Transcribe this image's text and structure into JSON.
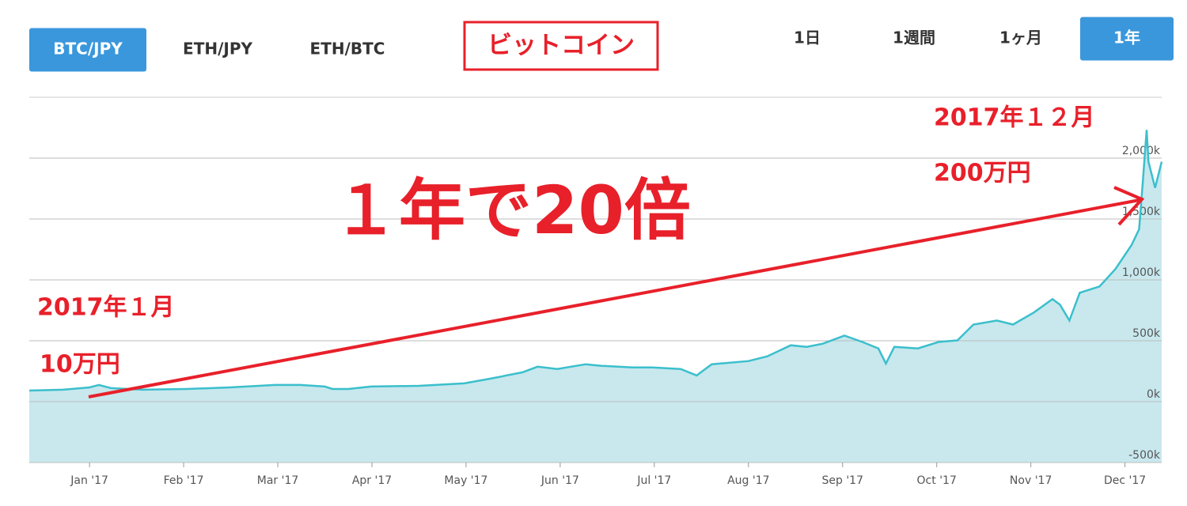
{
  "ui": {
    "pairs": [
      {
        "label": "BTC/JPY",
        "active": true
      },
      {
        "label": "ETH/JPY",
        "active": false
      },
      {
        "label": "ETH/BTC",
        "active": false
      }
    ],
    "title": "ビットコイン",
    "periods": [
      {
        "label": "1日",
        "active": false
      },
      {
        "label": "1週間",
        "active": false
      },
      {
        "label": "1ヶ月",
        "active": false
      },
      {
        "label": "1年",
        "active": true
      }
    ]
  },
  "chart_data": {
    "type": "area",
    "color": "#3bbfcc",
    "fill_color": "#c8e8ee",
    "grid": true,
    "x": [
      -0.64,
      -0.28,
      0,
      0.1,
      0.23,
      0.56,
      1.03,
      1.49,
      1.97,
      2.24,
      2.5,
      2.58,
      2.75,
      2.99,
      3.5,
      3.98,
      4.26,
      4.6,
      4.76,
      4.97,
      5.27,
      5.44,
      5.77,
      5.98,
      6.28,
      6.45,
      6.61,
      7.0,
      7.2,
      7.45,
      7.62,
      7.79,
      8.02,
      8.21,
      8.38,
      8.46,
      8.55,
      8.8,
      9.02,
      9.22,
      9.39,
      9.64,
      9.81,
      10.03,
      10.23,
      10.31,
      10.41,
      10.52,
      10.73,
      10.9,
      11.07,
      11.15,
      11.19,
      11.23,
      11.25,
      11.32,
      11.39
    ],
    "values": [
      91000,
      98000,
      117000,
      137000,
      111000,
      98000,
      104000,
      117000,
      137000,
      137000,
      124000,
      104000,
      104000,
      124000,
      130000,
      150000,
      189000,
      241000,
      287000,
      268000,
      307000,
      294000,
      281000,
      281000,
      268000,
      215000,
      307000,
      333000,
      372000,
      463000,
      450000,
      476000,
      542000,
      490000,
      437000,
      313000,
      450000,
      437000,
      490000,
      503000,
      633000,
      666000,
      633000,
      731000,
      842000,
      796000,
      666000,
      894000,
      946000,
      1090000,
      1286000,
      1416000,
      1808000,
      2232000,
      1971000,
      1756000,
      1971000
    ],
    "xlim": [
      -0.64,
      11.39
    ],
    "xticks": [
      {
        "value": 0,
        "label": "Jan '17"
      },
      {
        "value": 1,
        "label": "Feb '17"
      },
      {
        "value": 2,
        "label": "Mar '17"
      },
      {
        "value": 3,
        "label": "Apr '17"
      },
      {
        "value": 4,
        "label": "May '17"
      },
      {
        "value": 5,
        "label": "Jun '17"
      },
      {
        "value": 6,
        "label": "Jul '17"
      },
      {
        "value": 7,
        "label": "Aug '17"
      },
      {
        "value": 8,
        "label": "Sep '17"
      },
      {
        "value": 9,
        "label": "Oct '17"
      },
      {
        "value": 10,
        "label": "Nov '17"
      },
      {
        "value": 11,
        "label": "Dec '17"
      }
    ],
    "ylim": [
      -500000,
      2500000
    ],
    "yticks": [
      {
        "value": -500000,
        "label": "-500k"
      },
      {
        "value": 0,
        "label": "0k"
      },
      {
        "value": 500000,
        "label": "500k"
      },
      {
        "value": 1000000,
        "label": "1,000k"
      },
      {
        "value": 1500000,
        "label": "1,500k"
      },
      {
        "value": 2000000,
        "label": "2,000k"
      }
    ],
    "annotations": {
      "headline": "１年で20倍",
      "start_date": "2017年１月",
      "start_price": "10万円",
      "end_date": "2017年１２月",
      "end_price": "200万円"
    }
  }
}
